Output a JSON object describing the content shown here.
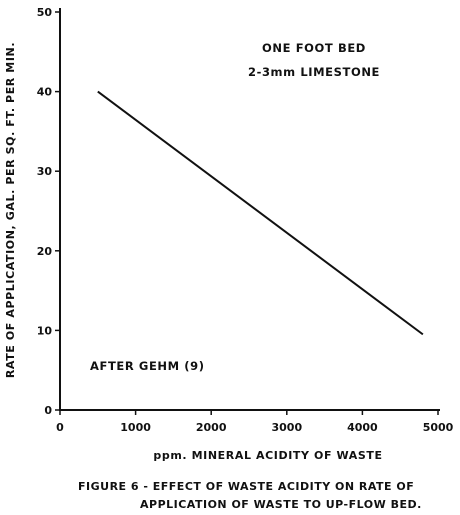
{
  "chart_data": {
    "type": "line",
    "xlabel": "ppm. MINERAL ACIDITY OF WASTE",
    "ylabel": "RATE OF APPLICATION, GAL. PER SQ. FT. PER MIN.",
    "xlim": [
      0,
      5000
    ],
    "ylim": [
      0,
      50
    ],
    "x_ticks": [
      "0",
      "1000",
      "2000",
      "3000",
      "4000",
      "5000"
    ],
    "y_ticks": [
      "0",
      "10",
      "20",
      "30",
      "40",
      "50"
    ],
    "grid": false,
    "series": [
      {
        "x": [
          500,
          4800
        ],
        "y": [
          40,
          9.5
        ]
      }
    ],
    "annotations": {
      "top_line1": "ONE FOOT BED",
      "top_line2": "2-3mm LIMESTONE",
      "source": "AFTER GEHM (9)"
    }
  },
  "caption": {
    "line1": "FIGURE 6 - EFFECT OF WASTE ACIDITY ON RATE OF",
    "line2": "APPLICATION OF WASTE TO UP-FLOW BED."
  }
}
